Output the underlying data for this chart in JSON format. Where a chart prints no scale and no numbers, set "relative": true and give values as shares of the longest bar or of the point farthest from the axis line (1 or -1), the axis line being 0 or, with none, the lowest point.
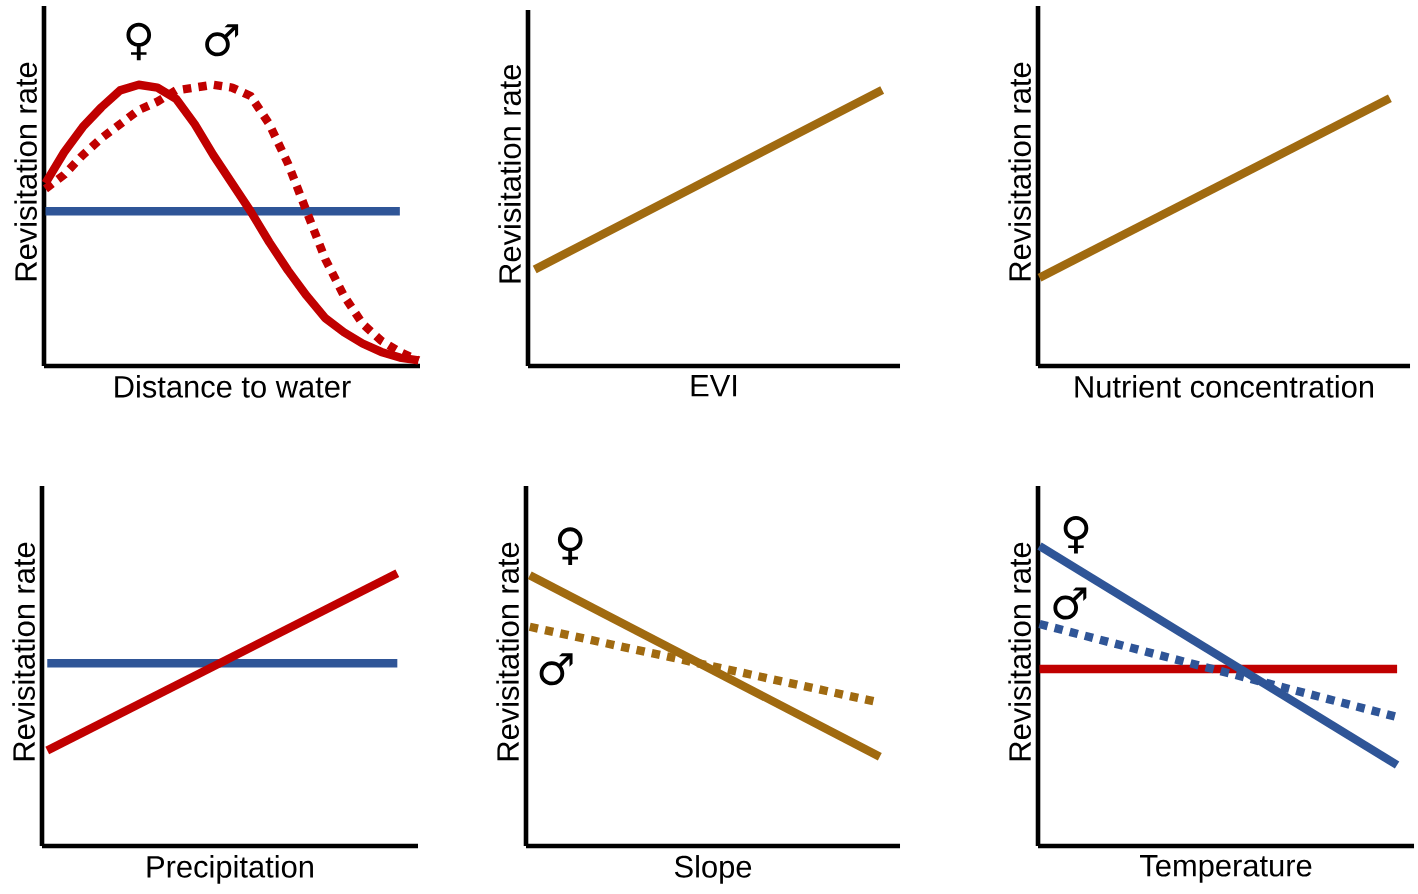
{
  "chart_data": [
    {
      "type": "line",
      "relative": true,
      "xlabel": "Distance to water",
      "ylabel": "Revisitation rate",
      "categories": [
        null,
        null,
        null,
        null,
        null,
        null,
        null,
        null,
        null,
        null,
        null,
        null,
        null,
        null,
        null,
        null,
        null,
        null,
        null,
        null,
        null
      ],
      "series": [
        {
          "color": "#2f5597",
          "line_style": "solid",
          "values": [
            0.55,
            0.55,
            0.55,
            0.55,
            0.55,
            0.55,
            0.55,
            0.55,
            0.55,
            0.55,
            0.55,
            0.55,
            0.55,
            0.55,
            0.55,
            0.55,
            0.55,
            0.55,
            0.55,
            0.55,
            null
          ]
        },
        {
          "name": "♀",
          "color": "#c00000",
          "line_style": "solid",
          "values": [
            0.65,
            0.76,
            0.85,
            0.92,
            0.98,
            1.0,
            0.99,
            0.95,
            0.86,
            0.75,
            0.65,
            0.55,
            0.44,
            0.34,
            0.25,
            0.17,
            0.12,
            0.08,
            0.05,
            0.03,
            0.02
          ]
        },
        {
          "name": "♂",
          "color": "#c00000",
          "line_style": "dotted",
          "values": [
            0.63,
            0.68,
            0.75,
            0.81,
            0.86,
            0.91,
            0.94,
            0.98,
            0.99,
            1.0,
            0.99,
            0.96,
            0.86,
            0.72,
            0.55,
            0.38,
            0.25,
            0.15,
            0.09,
            0.05,
            0.02
          ]
        }
      ]
    },
    {
      "type": "line",
      "relative": true,
      "xlabel": "EVI",
      "ylabel": "Revisitation rate",
      "categories": [
        null,
        null
      ],
      "series": [
        {
          "color": "#a06a10",
          "line_style": "solid",
          "values": [
            0.35,
            1.0
          ]
        }
      ]
    },
    {
      "type": "line",
      "relative": true,
      "xlabel": "Nutrient concentration",
      "ylabel": "Revisitation rate",
      "categories": [
        null,
        null
      ],
      "series": [
        {
          "color": "#a06a10",
          "line_style": "solid",
          "values": [
            0.33,
            1.0
          ]
        }
      ]
    },
    {
      "type": "line",
      "relative": true,
      "xlabel": "Precipitation",
      "ylabel": "Revisitation rate",
      "categories": [
        null,
        null
      ],
      "series": [
        {
          "color": "#2f5597",
          "line_style": "solid",
          "values": [
            0.67,
            0.67
          ]
        },
        {
          "color": "#c00000",
          "line_style": "solid",
          "values": [
            0.35,
            1.0
          ]
        }
      ]
    },
    {
      "type": "line",
      "relative": true,
      "xlabel": "Slope",
      "ylabel": "Revisitation rate",
      "categories": [
        null,
        null
      ],
      "series": [
        {
          "name": "♀",
          "color": "#a06a10",
          "line_style": "solid",
          "values": [
            1.0,
            0.33
          ]
        },
        {
          "name": "♂",
          "color": "#a06a10",
          "line_style": "dotted",
          "values": [
            0.81,
            0.53
          ]
        }
      ]
    },
    {
      "type": "line",
      "relative": true,
      "xlabel": "Temperature",
      "ylabel": "Revisitation rate",
      "categories": [
        null,
        null
      ],
      "series": [
        {
          "color": "#c00000",
          "line_style": "solid",
          "values": [
            0.59,
            0.59
          ]
        },
        {
          "name": "♀",
          "color": "#2f5597",
          "line_style": "solid",
          "values": [
            1.0,
            0.27
          ]
        },
        {
          "name": "♂",
          "color": "#2f5597",
          "line_style": "dotted",
          "values": [
            0.74,
            0.43
          ]
        }
      ]
    }
  ]
}
